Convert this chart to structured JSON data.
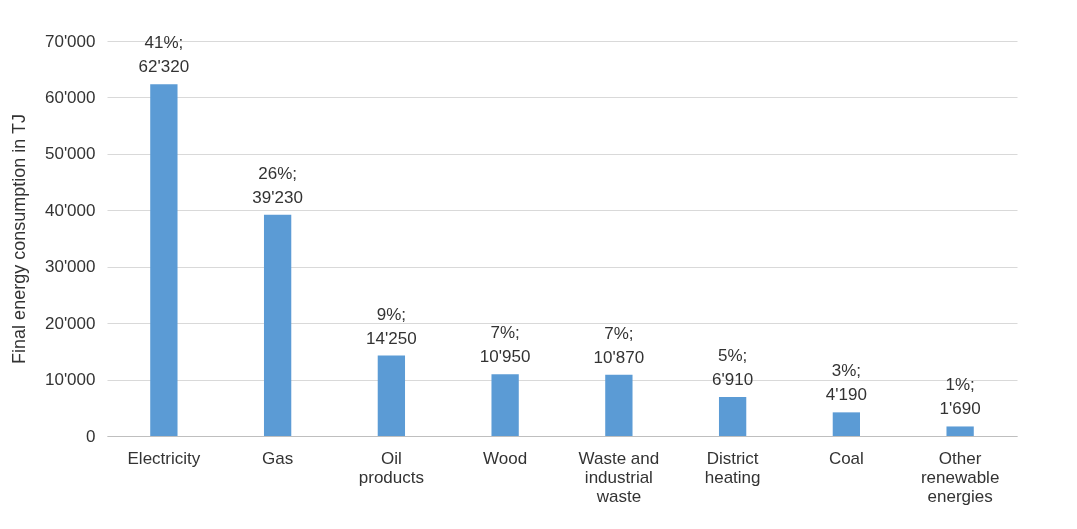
{
  "chart_data": {
    "type": "bar",
    "ylabel": "Final energy consumption in TJ",
    "categories": [
      "Electricity",
      "Gas",
      "Oil products",
      "Wood",
      "Waste and industrial waste",
      "District heating",
      "Coal",
      "Other renewable energies"
    ],
    "values": [
      62320,
      39230,
      14250,
      10950,
      10870,
      6910,
      4190,
      1690
    ],
    "value_labels": [
      "41%;\n62'320",
      "26%;\n39'230",
      "9%;\n14'250",
      "7%;\n10'950",
      "7%;\n10'870",
      "5%;\n6'910",
      "3%;\n4'190",
      "1%;\n1'690"
    ],
    "color": "#5b9bd5",
    "ylim": [
      0,
      70000
    ],
    "yticks": [
      0,
      {
        "value": 10000,
        "label": "10'000"
      },
      {
        "value": 20000,
        "label": "20'000"
      },
      {
        "value": 30000,
        "label": "30'000"
      },
      {
        "value": 40000,
        "label": "40'000"
      },
      {
        "value": 50000,
        "label": "50'000"
      },
      {
        "value": 60000,
        "label": "60'000"
      },
      {
        "value": 70000,
        "label": "70'000"
      }
    ],
    "grid": "y"
  }
}
